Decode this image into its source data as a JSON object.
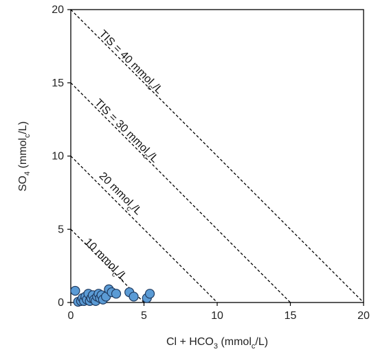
{
  "chart_data": {
    "type": "scatter",
    "xlabel": {
      "pre": "Cl + HCO",
      "sub": "3",
      "mid": " (mmol",
      "sub2": "c",
      "post": "/L)"
    },
    "ylabel": {
      "pre": "SO",
      "sub": "4",
      "mid": " (mmol",
      "sub2": "c",
      "post": "/L)"
    },
    "xlim": [
      0,
      20
    ],
    "ylim": [
      0,
      20
    ],
    "xticks": [
      0,
      5,
      10,
      15,
      20
    ],
    "yticks": [
      0,
      5,
      10,
      15,
      20
    ],
    "tick_labels_x": [
      "0",
      "5",
      "10",
      "15",
      "20"
    ],
    "tick_labels_y": [
      "0",
      "5",
      "10",
      "15",
      "20"
    ],
    "grid": false,
    "marker_color": "#5b9bd5",
    "marker_edge": "#1f3a5f",
    "tis_lines": [
      {
        "value": 10,
        "label_pre": "10 mmol",
        "label_sub": "c",
        "label_post": "/L"
      },
      {
        "value": 20,
        "label_pre": "20 mmol",
        "label_sub": "c",
        "label_post": "/L"
      },
      {
        "value": 30,
        "label_pre": "TIS = 30 mmol",
        "label_sub": "c",
        "label_post": "/L"
      },
      {
        "value": 40,
        "label_pre": "TIS = 40 mmol",
        "label_sub": "c",
        "label_post": "/L"
      }
    ],
    "points": [
      {
        "x": 0.3,
        "y": 0.8
      },
      {
        "x": 0.5,
        "y": 0.05
      },
      {
        "x": 0.7,
        "y": 0.1
      },
      {
        "x": 0.8,
        "y": 0.3
      },
      {
        "x": 0.9,
        "y": 0.1
      },
      {
        "x": 1.0,
        "y": 0.4
      },
      {
        "x": 1.1,
        "y": 0.2
      },
      {
        "x": 1.2,
        "y": 0.6
      },
      {
        "x": 1.3,
        "y": 0.1
      },
      {
        "x": 1.4,
        "y": 0.3
      },
      {
        "x": 1.5,
        "y": 0.5
      },
      {
        "x": 1.6,
        "y": 0.2
      },
      {
        "x": 1.7,
        "y": 0.1
      },
      {
        "x": 1.8,
        "y": 0.4
      },
      {
        "x": 1.9,
        "y": 0.6
      },
      {
        "x": 2.0,
        "y": 0.3
      },
      {
        "x": 2.1,
        "y": 0.5
      },
      {
        "x": 2.2,
        "y": 0.2
      },
      {
        "x": 2.4,
        "y": 0.4
      },
      {
        "x": 2.6,
        "y": 0.9
      },
      {
        "x": 2.8,
        "y": 0.7
      },
      {
        "x": 3.1,
        "y": 0.6
      },
      {
        "x": 4.0,
        "y": 0.7
      },
      {
        "x": 4.3,
        "y": 0.4
      },
      {
        "x": 5.2,
        "y": 0.3
      },
      {
        "x": 5.4,
        "y": 0.6
      }
    ]
  }
}
